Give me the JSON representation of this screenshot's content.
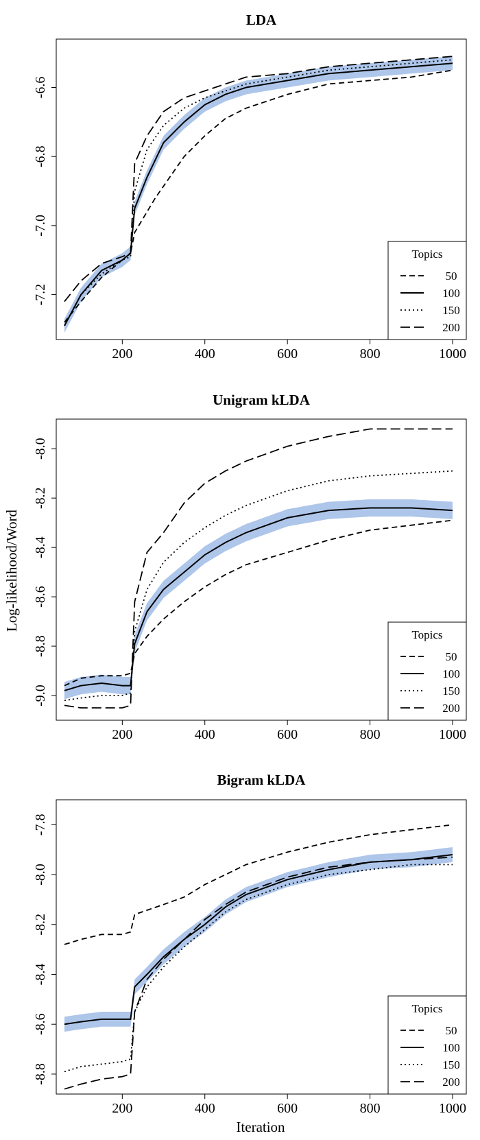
{
  "figure": {
    "ylabel": "Log-likelihood/Word",
    "xlabel": "Iteration"
  },
  "chart_data": [
    {
      "type": "line",
      "title": "LDA",
      "xlim": [
        50,
        1000
      ],
      "ylim": [
        -7.33,
        -6.46
      ],
      "xticks": [
        200,
        400,
        600,
        800,
        1000
      ],
      "yticks": [
        -7.2,
        -7.0,
        -6.8,
        -6.6
      ],
      "grid": false,
      "legend": {
        "title": "Topics",
        "position": "bottom-right",
        "entries": [
          "50",
          "100",
          "150",
          "200"
        ]
      },
      "band_series": "100",
      "band_color": "#aec6ea",
      "band_halfwidth": 0.02,
      "series": [
        {
          "name": "50",
          "style": "dashed",
          "points": [
            [
              60,
              -7.28
            ],
            [
              100,
              -7.22
            ],
            [
              150,
              -7.15
            ],
            [
              200,
              -7.1
            ],
            [
              220,
              -7.08
            ],
            [
              230,
              -7.02
            ],
            [
              280,
              -6.92
            ],
            [
              350,
              -6.8
            ],
            [
              400,
              -6.74
            ],
            [
              450,
              -6.69
            ],
            [
              500,
              -6.66
            ],
            [
              600,
              -6.62
            ],
            [
              700,
              -6.59
            ],
            [
              800,
              -6.58
            ],
            [
              900,
              -6.57
            ],
            [
              1000,
              -6.55
            ]
          ]
        },
        {
          "name": "100",
          "style": "solid",
          "points": [
            [
              60,
              -7.29
            ],
            [
              100,
              -7.2
            ],
            [
              150,
              -7.13
            ],
            [
              200,
              -7.1
            ],
            [
              220,
              -7.08
            ],
            [
              230,
              -6.95
            ],
            [
              260,
              -6.86
            ],
            [
              300,
              -6.76
            ],
            [
              350,
              -6.7
            ],
            [
              400,
              -6.65
            ],
            [
              450,
              -6.62
            ],
            [
              500,
              -6.6
            ],
            [
              600,
              -6.58
            ],
            [
              700,
              -6.56
            ],
            [
              800,
              -6.55
            ],
            [
              900,
              -6.54
            ],
            [
              1000,
              -6.53
            ]
          ]
        },
        {
          "name": "150",
          "style": "dotted",
          "points": [
            [
              60,
              -7.29
            ],
            [
              100,
              -7.2
            ],
            [
              150,
              -7.14
            ],
            [
              200,
              -7.1
            ],
            [
              220,
              -7.09
            ],
            [
              230,
              -6.9
            ],
            [
              260,
              -6.78
            ],
            [
              300,
              -6.71
            ],
            [
              350,
              -6.66
            ],
            [
              400,
              -6.63
            ],
            [
              450,
              -6.61
            ],
            [
              500,
              -6.59
            ],
            [
              600,
              -6.57
            ],
            [
              700,
              -6.55
            ],
            [
              800,
              -6.54
            ],
            [
              900,
              -6.53
            ],
            [
              1000,
              -6.52
            ]
          ]
        },
        {
          "name": "200",
          "style": "longdash",
          "points": [
            [
              60,
              -7.22
            ],
            [
              100,
              -7.16
            ],
            [
              150,
              -7.11
            ],
            [
              200,
              -7.09
            ],
            [
              220,
              -7.08
            ],
            [
              230,
              -6.82
            ],
            [
              260,
              -6.74
            ],
            [
              300,
              -6.67
            ],
            [
              350,
              -6.63
            ],
            [
              400,
              -6.61
            ],
            [
              450,
              -6.59
            ],
            [
              500,
              -6.57
            ],
            [
              600,
              -6.56
            ],
            [
              700,
              -6.54
            ],
            [
              800,
              -6.53
            ],
            [
              900,
              -6.52
            ],
            [
              1000,
              -6.51
            ]
          ]
        }
      ]
    },
    {
      "type": "line",
      "title": "Unigram kLDA",
      "xlim": [
        50,
        1000
      ],
      "ylim": [
        -9.1,
        -7.88
      ],
      "xticks": [
        200,
        400,
        600,
        800,
        1000
      ],
      "yticks": [
        -9.0,
        -8.8,
        -8.6,
        -8.4,
        -8.2,
        -8.0
      ],
      "grid": false,
      "legend": {
        "title": "Topics",
        "position": "bottom-right",
        "entries": [
          "50",
          "100",
          "150",
          "200"
        ]
      },
      "band_series": "100",
      "band_color": "#aec6ea",
      "band_halfwidth": 0.035,
      "series": [
        {
          "name": "50",
          "style": "dashed",
          "points": [
            [
              60,
              -8.96
            ],
            [
              100,
              -8.93
            ],
            [
              150,
              -8.92
            ],
            [
              200,
              -8.92
            ],
            [
              220,
              -8.91
            ],
            [
              230,
              -8.83
            ],
            [
              260,
              -8.76
            ],
            [
              300,
              -8.69
            ],
            [
              350,
              -8.62
            ],
            [
              400,
              -8.56
            ],
            [
              450,
              -8.51
            ],
            [
              500,
              -8.47
            ],
            [
              600,
              -8.42
            ],
            [
              700,
              -8.37
            ],
            [
              800,
              -8.33
            ],
            [
              900,
              -8.31
            ],
            [
              1000,
              -8.29
            ]
          ]
        },
        {
          "name": "100",
          "style": "solid",
          "points": [
            [
              60,
              -8.98
            ],
            [
              100,
              -8.96
            ],
            [
              150,
              -8.95
            ],
            [
              200,
              -8.96
            ],
            [
              220,
              -8.96
            ],
            [
              230,
              -8.79
            ],
            [
              260,
              -8.66
            ],
            [
              300,
              -8.57
            ],
            [
              350,
              -8.5
            ],
            [
              400,
              -8.43
            ],
            [
              450,
              -8.38
            ],
            [
              500,
              -8.34
            ],
            [
              600,
              -8.28
            ],
            [
              700,
              -8.25
            ],
            [
              800,
              -8.24
            ],
            [
              900,
              -8.24
            ],
            [
              1000,
              -8.25
            ]
          ]
        },
        {
          "name": "150",
          "style": "dotted",
          "points": [
            [
              60,
              -9.02
            ],
            [
              100,
              -9.01
            ],
            [
              150,
              -9.0
            ],
            [
              200,
              -9.0
            ],
            [
              220,
              -8.99
            ],
            [
              230,
              -8.74
            ],
            [
              260,
              -8.57
            ],
            [
              300,
              -8.46
            ],
            [
              350,
              -8.38
            ],
            [
              400,
              -8.32
            ],
            [
              450,
              -8.27
            ],
            [
              500,
              -8.23
            ],
            [
              600,
              -8.17
            ],
            [
              700,
              -8.13
            ],
            [
              800,
              -8.11
            ],
            [
              900,
              -8.1
            ],
            [
              1000,
              -8.09
            ]
          ]
        },
        {
          "name": "200",
          "style": "longdash",
          "points": [
            [
              60,
              -9.04
            ],
            [
              100,
              -9.05
            ],
            [
              150,
              -9.05
            ],
            [
              200,
              -9.05
            ],
            [
              220,
              -9.04
            ],
            [
              230,
              -8.62
            ],
            [
              260,
              -8.42
            ],
            [
              300,
              -8.34
            ],
            [
              350,
              -8.22
            ],
            [
              400,
              -8.14
            ],
            [
              450,
              -8.09
            ],
            [
              500,
              -8.05
            ],
            [
              600,
              -7.99
            ],
            [
              700,
              -7.95
            ],
            [
              800,
              -7.92
            ],
            [
              900,
              -7.92
            ],
            [
              1000,
              -7.92
            ]
          ]
        }
      ]
    },
    {
      "type": "line",
      "title": "Bigram kLDA",
      "xlim": [
        50,
        1000
      ],
      "ylim": [
        -8.88,
        -7.7
      ],
      "xticks": [
        200,
        400,
        600,
        800,
        1000
      ],
      "yticks": [
        -8.8,
        -8.6,
        -8.4,
        -8.2,
        -8.0,
        -7.8
      ],
      "grid": false,
      "legend": {
        "title": "Topics",
        "position": "bottom-right",
        "entries": [
          "50",
          "100",
          "150",
          "200"
        ]
      },
      "band_series": "100",
      "band_color": "#aec6ea",
      "band_halfwidth": 0.03,
      "series": [
        {
          "name": "50",
          "style": "dashed",
          "points": [
            [
              60,
              -8.28
            ],
            [
              100,
              -8.26
            ],
            [
              150,
              -8.24
            ],
            [
              200,
              -8.24
            ],
            [
              220,
              -8.23
            ],
            [
              230,
              -8.16
            ],
            [
              300,
              -8.12
            ],
            [
              350,
              -8.09
            ],
            [
              400,
              -8.04
            ],
            [
              450,
              -8.0
            ],
            [
              500,
              -7.96
            ],
            [
              600,
              -7.91
            ],
            [
              700,
              -7.87
            ],
            [
              800,
              -7.84
            ],
            [
              900,
              -7.82
            ],
            [
              1000,
              -7.8
            ]
          ]
        },
        {
          "name": "100",
          "style": "solid",
          "points": [
            [
              60,
              -8.6
            ],
            [
              100,
              -8.59
            ],
            [
              150,
              -8.58
            ],
            [
              200,
              -8.58
            ],
            [
              220,
              -8.58
            ],
            [
              230,
              -8.45
            ],
            [
              260,
              -8.4
            ],
            [
              300,
              -8.33
            ],
            [
              350,
              -8.26
            ],
            [
              400,
              -8.2
            ],
            [
              450,
              -8.13
            ],
            [
              500,
              -8.08
            ],
            [
              600,
              -8.02
            ],
            [
              700,
              -7.98
            ],
            [
              800,
              -7.95
            ],
            [
              900,
              -7.94
            ],
            [
              1000,
              -7.92
            ]
          ]
        },
        {
          "name": "150",
          "style": "dotted",
          "points": [
            [
              60,
              -8.79
            ],
            [
              100,
              -8.77
            ],
            [
              150,
              -8.76
            ],
            [
              200,
              -8.75
            ],
            [
              220,
              -8.74
            ],
            [
              230,
              -8.55
            ],
            [
              260,
              -8.45
            ],
            [
              300,
              -8.37
            ],
            [
              350,
              -8.29
            ],
            [
              400,
              -8.22
            ],
            [
              450,
              -8.15
            ],
            [
              500,
              -8.1
            ],
            [
              600,
              -8.04
            ],
            [
              700,
              -8.0
            ],
            [
              800,
              -7.98
            ],
            [
              900,
              -7.96
            ],
            [
              1000,
              -7.96
            ]
          ]
        },
        {
          "name": "200",
          "style": "longdash",
          "points": [
            [
              60,
              -8.86
            ],
            [
              100,
              -8.84
            ],
            [
              150,
              -8.82
            ],
            [
              200,
              -8.81
            ],
            [
              220,
              -8.8
            ],
            [
              230,
              -8.55
            ],
            [
              260,
              -8.42
            ],
            [
              300,
              -8.34
            ],
            [
              350,
              -8.26
            ],
            [
              400,
              -8.18
            ],
            [
              450,
              -8.12
            ],
            [
              500,
              -8.07
            ],
            [
              600,
              -8.01
            ],
            [
              700,
              -7.97
            ],
            [
              800,
              -7.95
            ],
            [
              900,
              -7.94
            ],
            [
              1000,
              -7.93
            ]
          ]
        }
      ]
    }
  ]
}
